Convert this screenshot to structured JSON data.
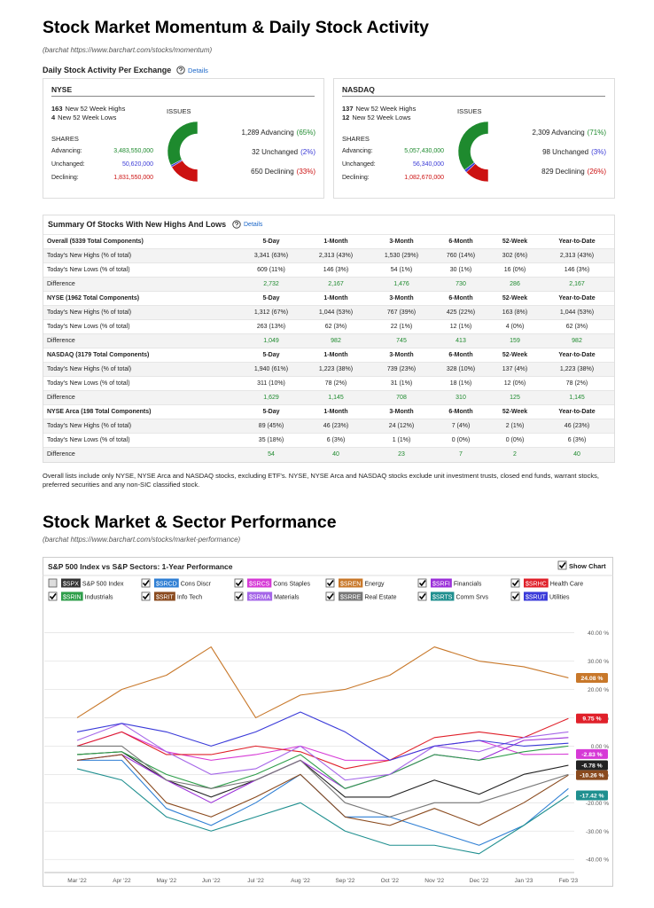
{
  "header": {
    "title": "Stock Market Momentum & Daily Stock Activity",
    "source": "(barchat https://www.barchart.com/stocks/momentum)"
  },
  "activity": {
    "title": "Daily Stock Activity Per Exchange",
    "link": "Details",
    "exchanges": [
      {
        "name": "NYSE",
        "highs": "163",
        "highs_text": "New 52 Week Highs",
        "lows": "4",
        "lows_text": "New 52 Week Lows",
        "issues_title": "ISSUES",
        "shares_title": "SHARES",
        "shares": [
          {
            "label": "Advancing:",
            "value": "3,483,550,000"
          },
          {
            "label": "Unchanged:",
            "value": "50,620,000"
          },
          {
            "label": "Declining:",
            "value": "1,831,550,000"
          }
        ],
        "issues": [
          {
            "text": "1,289 Advancing",
            "pct": "(65%)",
            "value": 65,
            "color": "#1e8a2e"
          },
          {
            "text": "32 Unchanged",
            "pct": "(2%)",
            "value": 2,
            "color": "#3b3bd6"
          },
          {
            "text": "650 Declining",
            "pct": "(33%)",
            "value": 33,
            "color": "#cc1111"
          }
        ]
      },
      {
        "name": "NASDAQ",
        "highs": "137",
        "highs_text": "New 52 Week Highs",
        "lows": "12",
        "lows_text": "New 52 Week Lows",
        "issues_title": "ISSUES",
        "shares_title": "SHARES",
        "shares": [
          {
            "label": "Advancing:",
            "value": "5,057,430,000"
          },
          {
            "label": "Unchanged:",
            "value": "56,340,000"
          },
          {
            "label": "Declining:",
            "value": "1,082,670,000"
          }
        ],
        "issues": [
          {
            "text": "2,309 Advancing",
            "pct": "(71%)",
            "value": 71,
            "color": "#1e8a2e"
          },
          {
            "text": "98 Unchanged",
            "pct": "(3%)",
            "value": 3,
            "color": "#3b3bd6"
          },
          {
            "text": "829 Declining",
            "pct": "(26%)",
            "value": 26,
            "color": "#cc1111"
          }
        ]
      }
    ]
  },
  "summary": {
    "title": "Summary Of Stocks With New Highs And Lows",
    "link": "Details",
    "sections": [
      {
        "header": [
          "Overall (5339 Total Components)",
          "5-Day",
          "1-Month",
          "3-Month",
          "6-Month",
          "52-Week",
          "Year-to-Date"
        ],
        "rows": [
          [
            "Today's New Highs (% of total)",
            "3,341 (63%)",
            "2,313 (43%)",
            "1,530 (29%)",
            "760 (14%)",
            "302 (6%)",
            "2,313 (43%)"
          ],
          [
            "Today's New Lows (% of total)",
            "609 (11%)",
            "146 (3%)",
            "54 (1%)",
            "30 (1%)",
            "16 (0%)",
            "146 (3%)"
          ],
          [
            "Difference",
            "2,732",
            "2,167",
            "1,476",
            "730",
            "286",
            "2,167"
          ]
        ]
      },
      {
        "header": [
          "NYSE (1962 Total Components)",
          "5-Day",
          "1-Month",
          "3-Month",
          "6-Month",
          "52-Week",
          "Year-to-Date"
        ],
        "rows": [
          [
            "Today's New Highs (% of total)",
            "1,312 (67%)",
            "1,044 (53%)",
            "767 (39%)",
            "425 (22%)",
            "163 (8%)",
            "1,044 (53%)"
          ],
          [
            "Today's New Lows (% of total)",
            "263 (13%)",
            "62 (3%)",
            "22 (1%)",
            "12 (1%)",
            "4 (0%)",
            "62 (3%)"
          ],
          [
            "Difference",
            "1,049",
            "982",
            "745",
            "413",
            "159",
            "982"
          ]
        ]
      },
      {
        "header": [
          "NASDAQ (3179 Total Components)",
          "5-Day",
          "1-Month",
          "3-Month",
          "6-Month",
          "52-Week",
          "Year-to-Date"
        ],
        "rows": [
          [
            "Today's New Highs (% of total)",
            "1,940 (61%)",
            "1,223 (38%)",
            "739 (23%)",
            "328 (10%)",
            "137 (4%)",
            "1,223 (38%)"
          ],
          [
            "Today's New Lows (% of total)",
            "311 (10%)",
            "78 (2%)",
            "31 (1%)",
            "18 (1%)",
            "12 (0%)",
            "78 (2%)"
          ],
          [
            "Difference",
            "1,629",
            "1,145",
            "708",
            "310",
            "125",
            "1,145"
          ]
        ]
      },
      {
        "header": [
          "NYSE Arca (198 Total Components)",
          "5-Day",
          "1-Month",
          "3-Month",
          "6-Month",
          "52-Week",
          "Year-to-Date"
        ],
        "rows": [
          [
            "Today's New Highs (% of total)",
            "89 (45%)",
            "46 (23%)",
            "24 (12%)",
            "7 (4%)",
            "2 (1%)",
            "46 (23%)"
          ],
          [
            "Today's New Lows (% of total)",
            "35 (18%)",
            "6 (3%)",
            "1 (1%)",
            "0 (0%)",
            "0 (0%)",
            "6 (3%)"
          ],
          [
            "Difference",
            "54",
            "40",
            "23",
            "7",
            "2",
            "40"
          ]
        ]
      }
    ],
    "footnote": "Overall lists include only NYSE, NYSE Arca and NASDAQ stocks, excluding ETF's. NYSE, NYSE Arca and NASDAQ stocks exclude unit investment trusts, closed end funds, warrant stocks, preferred securities and any non-SIC classified stock."
  },
  "performance": {
    "title": "Stock Market & Sector Performance",
    "source": "(barchat https://www.barchart.com/stocks/market-performance)"
  },
  "chart_data": {
    "type": "line",
    "title": "S&P 500 Index vs S&P Sectors: 1-Year Performance",
    "show_chart": "Show Chart",
    "categories": [
      "Mar '22",
      "Apr '22",
      "May '22",
      "Jun '22",
      "Jul '22",
      "Aug '22",
      "Sep '22",
      "Oct '22",
      "Nov '22",
      "Dec '22",
      "Jan '23",
      "Feb '23"
    ],
    "ylim": [
      -44,
      48
    ],
    "yticks": [
      {
        "value": 40,
        "label": "40.00 %"
      },
      {
        "value": 30,
        "label": "30.00 %"
      },
      {
        "value": 20,
        "label": "20.00 %"
      },
      {
        "value": 10,
        "label": "10.00 %"
      },
      {
        "value": 0,
        "label": "0.00 %"
      },
      {
        "value": -10,
        "label": "-10.00 %"
      },
      {
        "value": -20,
        "label": "-20.00 %"
      },
      {
        "value": -30,
        "label": "-30.00 %"
      },
      {
        "value": -40,
        "label": "-40.00 %"
      }
    ],
    "grid": true,
    "series": [
      {
        "symbol": "$SPX",
        "name": "S&P 500 Index",
        "color": "#222222",
        "checked": false,
        "values": [
          -3,
          -2,
          -12,
          -18,
          -12,
          -5,
          -18,
          -18,
          -12,
          -17,
          -10,
          -6.78
        ],
        "value_labels": [
          null,
          null,
          null,
          null,
          null,
          null,
          null,
          null,
          null,
          null,
          null,
          "-6.78 %"
        ]
      },
      {
        "symbol": "$SRCD",
        "name": "Cons Discr",
        "color": "#2f7fd4",
        "checked": true,
        "values": [
          -5,
          -5,
          -22,
          -28,
          -20,
          -10,
          -25,
          -25,
          -30,
          -35,
          -28,
          -15
        ]
      },
      {
        "symbol": "$SRCS",
        "name": "Cons Staples",
        "color": "#d63ad6",
        "checked": true,
        "values": [
          0,
          5,
          -2,
          -5,
          -3,
          0,
          -5,
          -5,
          0,
          2,
          -3,
          -2.83
        ],
        "value_labels": [
          null,
          null,
          null,
          null,
          null,
          null,
          null,
          null,
          null,
          null,
          null,
          "-2.83 %"
        ]
      },
      {
        "symbol": "$SREN",
        "name": "Energy",
        "color": "#c8782a",
        "checked": true,
        "values": [
          10,
          20,
          25,
          35,
          10,
          18,
          20,
          25,
          35,
          30,
          28,
          24.08
        ],
        "value_labels": [
          null,
          null,
          null,
          null,
          null,
          null,
          null,
          null,
          null,
          null,
          null,
          "24.08 %"
        ]
      },
      {
        "symbol": "$SRFI",
        "name": "Financials",
        "color": "#9b30d9",
        "checked": true,
        "values": [
          -5,
          -3,
          -12,
          -20,
          -12,
          -5,
          -15,
          -10,
          -3,
          -5,
          2,
          3
        ]
      },
      {
        "symbol": "$SRHC",
        "name": "Health Care",
        "color": "#e0202a",
        "checked": true,
        "values": [
          0,
          5,
          -3,
          -3,
          0,
          -2,
          -8,
          -5,
          3,
          5,
          3,
          9.75
        ],
        "value_labels": [
          null,
          null,
          null,
          null,
          null,
          null,
          null,
          null,
          null,
          null,
          null,
          "9.75 %"
        ]
      },
      {
        "symbol": "$SRIN",
        "name": "Industrials",
        "color": "#2e9e4a",
        "checked": true,
        "values": [
          -3,
          -2,
          -10,
          -15,
          -10,
          -3,
          -15,
          -10,
          -3,
          -5,
          -2,
          0
        ]
      },
      {
        "symbol": "$SRIT",
        "name": "Info Tech",
        "color": "#8a4a1e",
        "checked": true,
        "values": [
          -5,
          -3,
          -20,
          -25,
          -18,
          -10,
          -25,
          -28,
          -22,
          -28,
          -20,
          -10.26
        ],
        "value_labels": [
          null,
          null,
          null,
          null,
          null,
          null,
          null,
          null,
          null,
          null,
          null,
          "-10.26 %"
        ]
      },
      {
        "symbol": "$SRMA",
        "name": "Materials",
        "color": "#a566e8",
        "checked": true,
        "values": [
          2,
          8,
          -2,
          -10,
          -8,
          0,
          -12,
          -10,
          0,
          -2,
          3,
          5
        ]
      },
      {
        "symbol": "$SRRE",
        "name": "Real Estate",
        "color": "#777777",
        "checked": true,
        "values": [
          0,
          0,
          -12,
          -15,
          -12,
          -5,
          -20,
          -25,
          -20,
          -20,
          -15,
          -10
        ]
      },
      {
        "symbol": "$SRTS",
        "name": "Comm Srvs",
        "color": "#1f8f8f",
        "checked": true,
        "values": [
          -8,
          -12,
          -25,
          -30,
          -25,
          -20,
          -30,
          -35,
          -35,
          -38,
          -28,
          -17.42
        ],
        "value_labels": [
          null,
          null,
          null,
          null,
          null,
          null,
          null,
          null,
          null,
          null,
          null,
          "-17.42 %"
        ]
      },
      {
        "symbol": "$SRUT",
        "name": "Utilities",
        "color": "#3a3ad9",
        "checked": true,
        "values": [
          5,
          8,
          5,
          0,
          5,
          12,
          5,
          -5,
          0,
          2,
          0,
          1
        ]
      }
    ]
  }
}
